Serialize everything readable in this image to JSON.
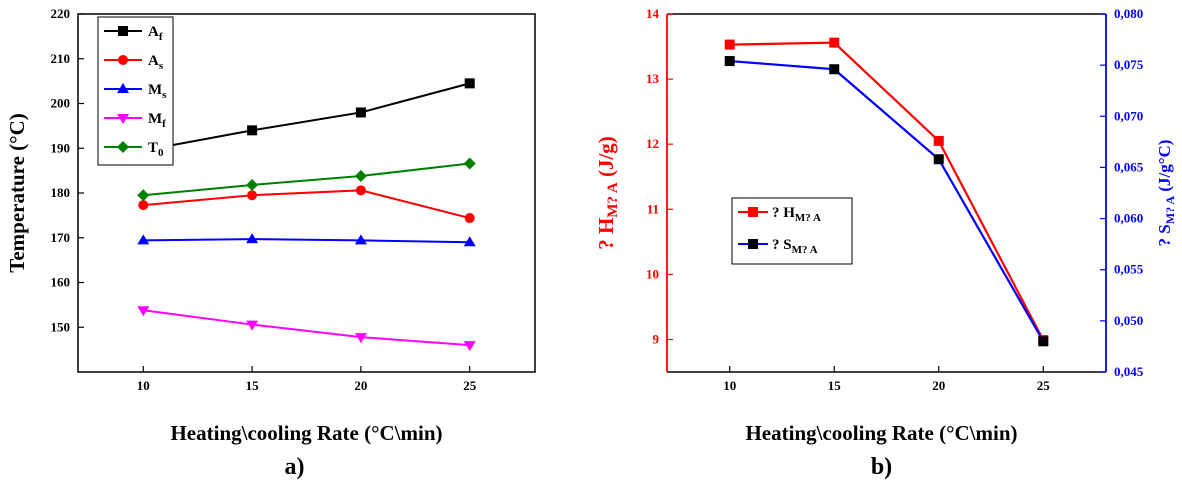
{
  "chart_data": [
    {
      "type": "line",
      "caption": "a)",
      "xlabel": "Heating\\cooling Rate (°C\\min)",
      "ylabel": "Temperature (°C)",
      "xlim": [
        7,
        28
      ],
      "ylim": [
        140,
        220
      ],
      "xticks": [
        10,
        15,
        20,
        25
      ],
      "yticks": [
        150,
        160,
        170,
        180,
        190,
        200,
        210,
        220
      ],
      "legend_position": "top-left",
      "x": [
        10,
        15,
        20,
        25
      ],
      "series": [
        {
          "name": "A",
          "sub": "f",
          "color": "#000000",
          "marker": "square",
          "values": [
            189.5,
            194.0,
            198.0,
            204.5
          ]
        },
        {
          "name": "A",
          "sub": "s",
          "color": "#ff0000",
          "marker": "circle",
          "values": [
            177.3,
            179.5,
            180.6,
            174.4
          ]
        },
        {
          "name": "M",
          "sub": "s",
          "color": "#0000ff",
          "marker": "triangle-up",
          "values": [
            169.4,
            169.7,
            169.4,
            169.0
          ]
        },
        {
          "name": "M",
          "sub": "f",
          "color": "#ff00ff",
          "marker": "triangle-down",
          "values": [
            153.8,
            150.6,
            147.8,
            146.0
          ]
        },
        {
          "name": "T",
          "sub": "0",
          "color": "#008000",
          "marker": "diamond",
          "values": [
            179.5,
            181.8,
            183.8,
            186.6
          ]
        }
      ]
    },
    {
      "type": "line",
      "caption": "b)",
      "xlabel": "Heating\\cooling Rate (°C\\min)",
      "ylabel_left": "? H",
      "ylabel_left_sub": "M? A",
      "ylabel_left_unit": " (J/g)",
      "ylabel_right": "? S",
      "ylabel_right_sub": "M? A",
      "ylabel_right_unit": " (J/g°C)",
      "xlim": [
        7,
        28
      ],
      "ylim_left": [
        8.5,
        14
      ],
      "ylim_right": [
        0.045,
        0.08
      ],
      "xticks": [
        10,
        15,
        20,
        25
      ],
      "yticks_left": [
        9,
        10,
        11,
        12,
        13,
        14
      ],
      "yticks_right": [
        "0,045",
        "0,050",
        "0,055",
        "0,060",
        "0,065",
        "0,070",
        "0,075",
        "0,080"
      ],
      "yticks_right_values": [
        0.045,
        0.05,
        0.055,
        0.06,
        0.065,
        0.07,
        0.075,
        0.08
      ],
      "legend_position": "center-left",
      "x": [
        10,
        15,
        20,
        25
      ],
      "series": [
        {
          "name": "? H",
          "sub": "M? A",
          "axis": "left",
          "color": "#ff0000",
          "marker": "square",
          "values": [
            13.53,
            13.56,
            12.05,
            8.99
          ]
        },
        {
          "name": "? S",
          "sub": "M? A",
          "axis": "right",
          "color": "#0000ff",
          "marker": "square",
          "values": [
            0.0754,
            0.0746,
            0.0658,
            0.048
          ]
        }
      ]
    }
  ]
}
